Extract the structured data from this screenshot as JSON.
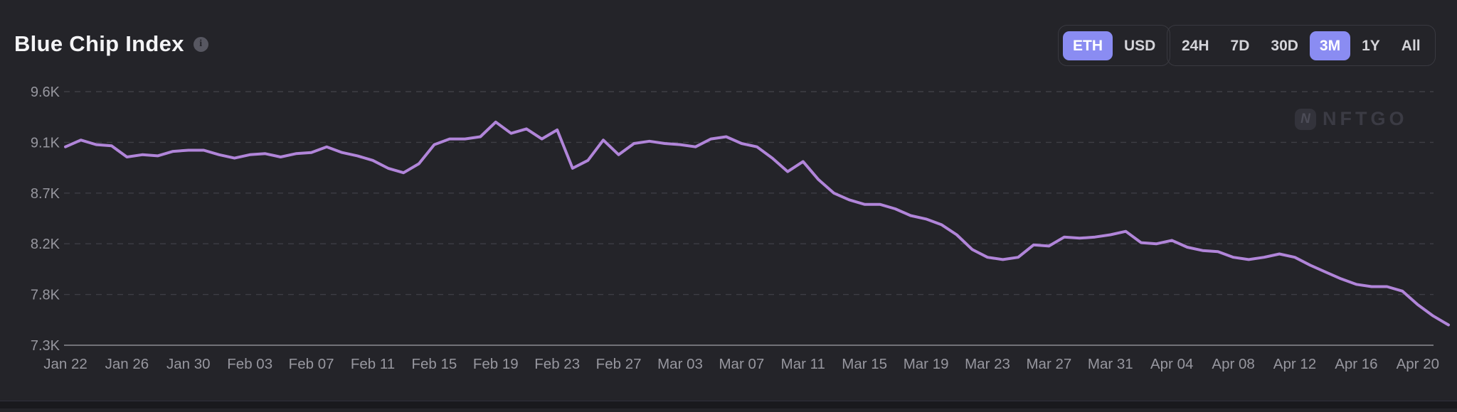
{
  "header": {
    "title": "Blue Chip Index",
    "info_glyph": "i",
    "currency_toggle": {
      "options": [
        "ETH",
        "USD"
      ],
      "selected": "ETH"
    },
    "range_toggle": {
      "options": [
        "24H",
        "7D",
        "30D",
        "3M",
        "1Y",
        "All"
      ],
      "selected": "3M"
    }
  },
  "watermark": {
    "icon_glyph": "N",
    "text": "NFTGO"
  },
  "colors": {
    "background": "#242429",
    "accent_selected": "#8a8cf2",
    "line": "#b185d9",
    "axis_label": "#97979f",
    "gridline": "#3e3e45",
    "axis_line": "#8b8b93",
    "bottom_strip": "#19191d"
  },
  "chart_data": {
    "type": "line",
    "title": "Blue Chip Index",
    "unit": "ETH",
    "values_scale": "thousands",
    "grid": "horizontal dashed",
    "legend": "none",
    "x_start_date": "Jan 22",
    "x_tick_step_days": 4,
    "x_ticks": [
      "Jan 22",
      "Jan 26",
      "Jan 30",
      "Feb 03",
      "Feb 07",
      "Feb 11",
      "Feb 15",
      "Feb 19",
      "Feb 23",
      "Feb 27",
      "Mar 03",
      "Mar 07",
      "Mar 11",
      "Mar 15",
      "Mar 19",
      "Mar 23",
      "Mar 27",
      "Mar 31",
      "Apr 04",
      "Apr 08",
      "Apr 12",
      "Apr 16",
      "Apr 20"
    ],
    "y_ticks": [
      {
        "value": 9.55,
        "label": "9.6K"
      },
      {
        "value": 9.1,
        "label": "9.1K"
      },
      {
        "value": 8.65,
        "label": "8.7K"
      },
      {
        "value": 8.2,
        "label": "8.2K"
      },
      {
        "value": 7.75,
        "label": "7.8K"
      },
      {
        "value": 7.3,
        "label": "7.3K",
        "axis": true
      }
    ],
    "ylim": [
      7.3,
      9.78
    ],
    "values": [
      9.06,
      9.12,
      9.08,
      9.07,
      8.97,
      8.99,
      8.98,
      9.02,
      9.03,
      9.03,
      8.99,
      8.96,
      8.99,
      9.0,
      8.97,
      9.0,
      9.01,
      9.06,
      9.01,
      8.98,
      8.94,
      8.87,
      8.83,
      8.91,
      9.08,
      9.13,
      9.13,
      9.15,
      9.28,
      9.18,
      9.22,
      9.13,
      9.21,
      8.87,
      8.94,
      9.12,
      8.99,
      9.09,
      9.11,
      9.09,
      9.08,
      9.06,
      9.13,
      9.15,
      9.09,
      9.06,
      8.96,
      8.84,
      8.93,
      8.77,
      8.65,
      8.59,
      8.55,
      8.55,
      8.51,
      8.45,
      8.42,
      8.37,
      8.28,
      8.15,
      8.08,
      8.06,
      8.08,
      8.19,
      8.18,
      8.26,
      8.25,
      8.26,
      8.28,
      8.31,
      8.21,
      8.2,
      8.23,
      8.17,
      8.14,
      8.13,
      8.08,
      8.06,
      8.08,
      8.11,
      8.08,
      8.01,
      7.95,
      7.89,
      7.84,
      7.82,
      7.82,
      7.78,
      7.66,
      7.56,
      7.48
    ]
  }
}
